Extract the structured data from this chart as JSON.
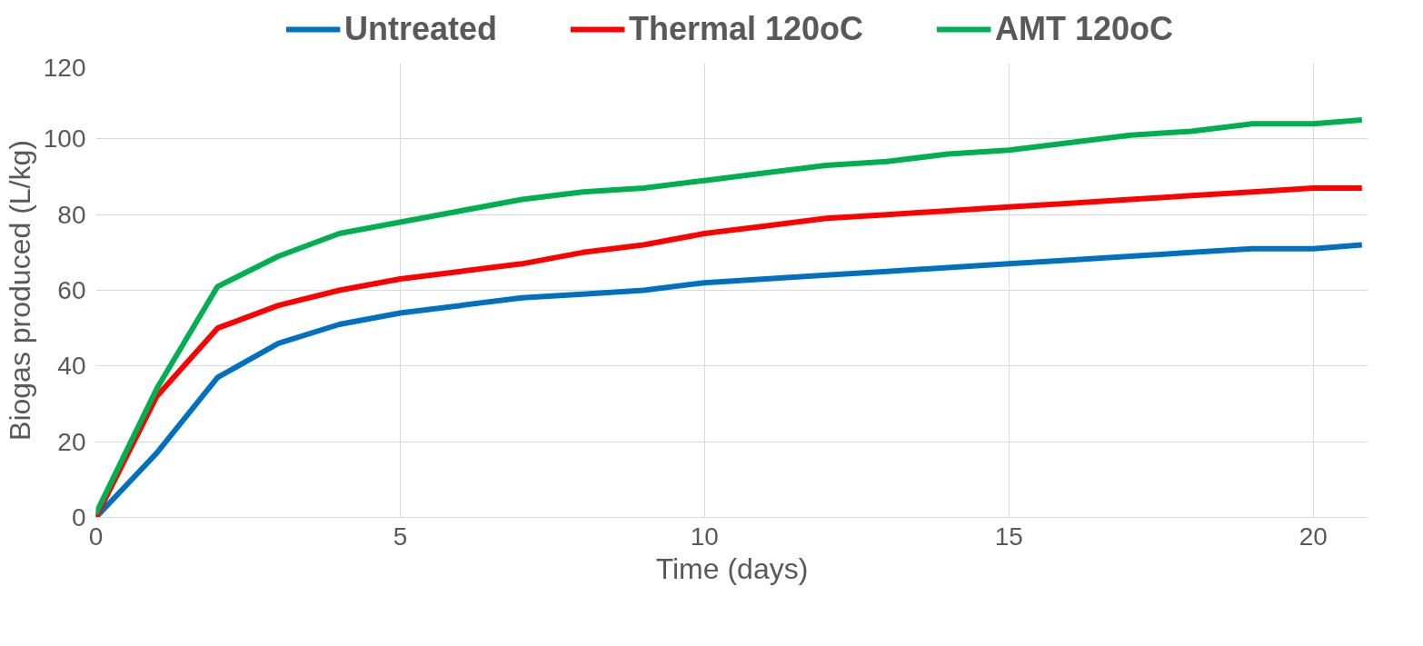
{
  "chart_data": {
    "type": "line",
    "xlabel": "Time (days)",
    "ylabel": "Biogas produced (L/kg)",
    "x": [
      0,
      1,
      2,
      3,
      4,
      5,
      6,
      7,
      8,
      9,
      10,
      11,
      12,
      13,
      14,
      15,
      16,
      17,
      18,
      19,
      20,
      20.8
    ],
    "series": [
      {
        "name": "Untreated",
        "color": "#0070c0",
        "values": [
          0,
          17,
          37,
          46,
          51,
          54,
          56,
          58,
          59,
          60,
          62,
          63,
          64,
          65,
          66,
          67,
          68,
          69,
          70,
          71,
          71,
          72
        ]
      },
      {
        "name": "Thermal 120oC",
        "color": "#ff0000",
        "values": [
          0,
          32,
          50,
          56,
          60,
          63,
          65,
          67,
          70,
          72,
          75,
          77,
          79,
          80,
          81,
          82,
          83,
          84,
          85,
          86,
          87,
          87
        ]
      },
      {
        "name": "AMT 120oC",
        "color": "#00b050",
        "values": [
          1,
          34,
          61,
          69,
          75,
          78,
          81,
          84,
          86,
          87,
          89,
          91,
          93,
          94,
          96,
          97,
          99,
          101,
          102,
          104,
          104,
          105
        ]
      }
    ],
    "xlim": [
      0,
      20.9
    ],
    "ylim": [
      0,
      120
    ],
    "xticks": [
      0,
      5,
      10,
      15,
      20
    ],
    "yticks": [
      0,
      20,
      40,
      60,
      80,
      100,
      120
    ],
    "grid": true,
    "legend": "top",
    "marker": "none",
    "line_style": "solid"
  }
}
